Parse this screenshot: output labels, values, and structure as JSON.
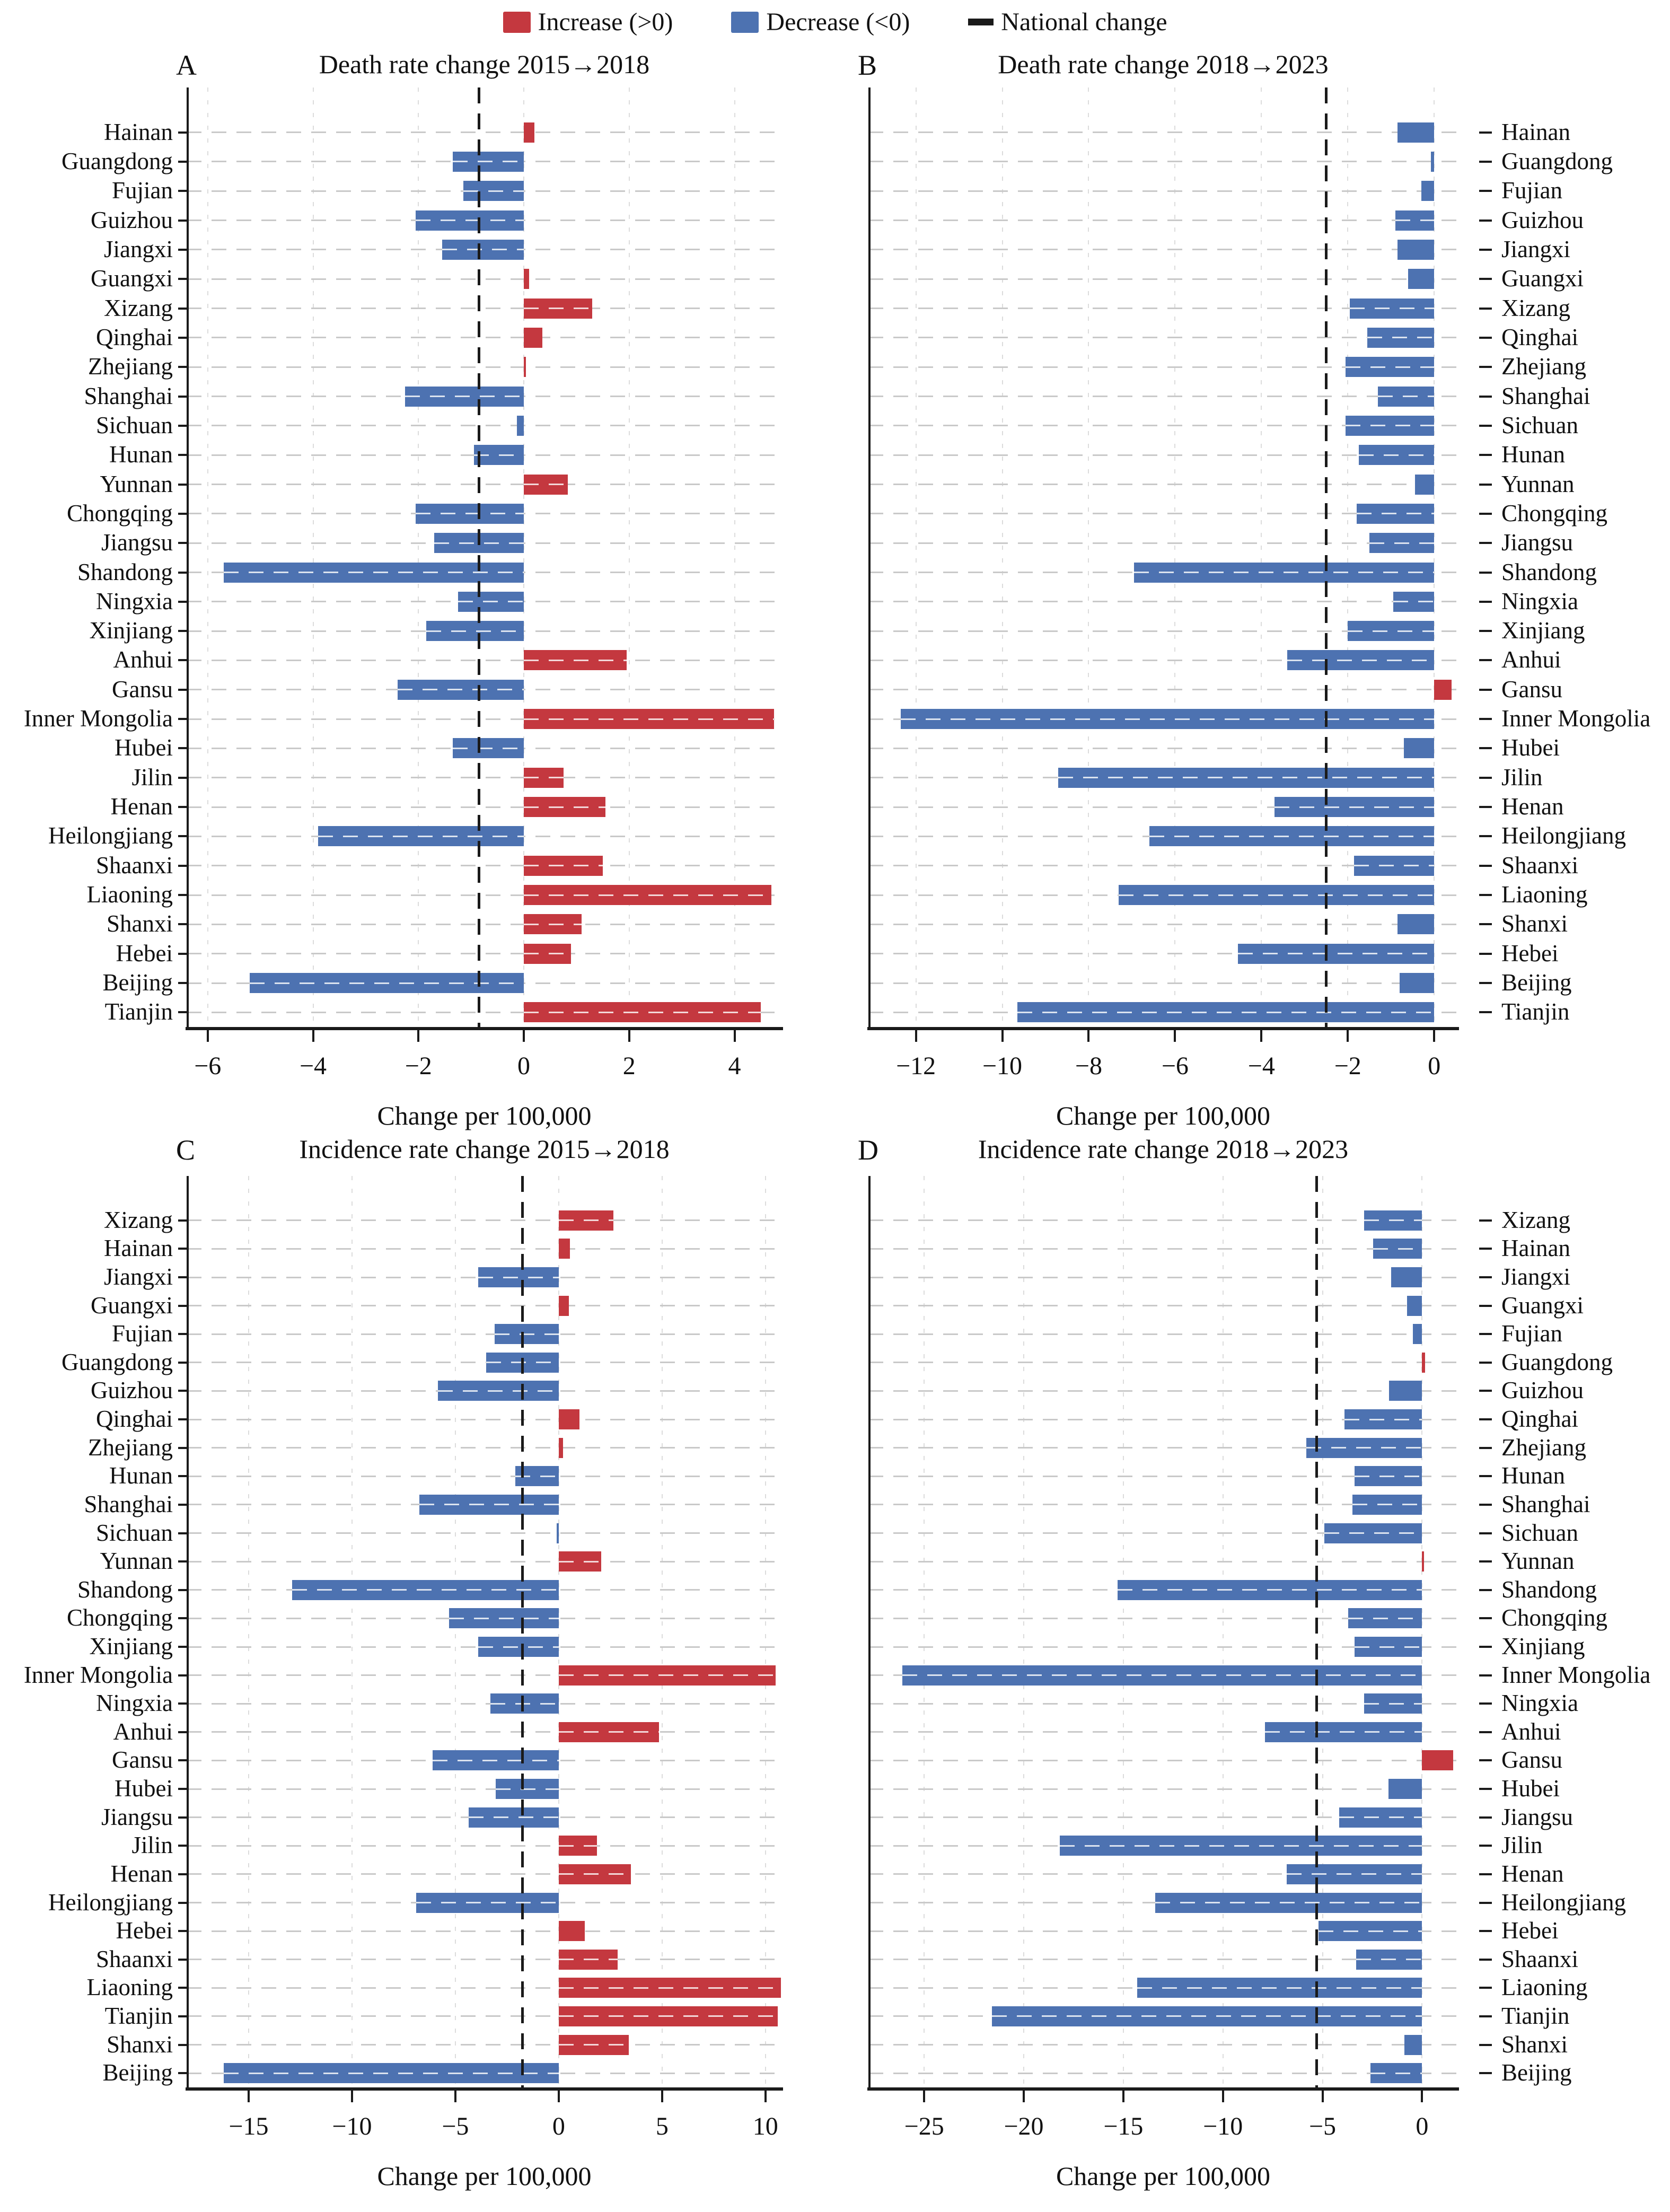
{
  "figure": {
    "legend": [
      {
        "label": "Increase (>0)",
        "swatch": "increase"
      },
      {
        "label": "Decrease (<0)",
        "swatch": "decrease"
      },
      {
        "label": "National change",
        "swatch": "national"
      }
    ],
    "colors": {
      "increase": "#c4383f",
      "decrease": "#4d72b1",
      "national": "#1a1a1a",
      "row_grid": "#c9c9c9",
      "tick_grid": "#dcdcdc",
      "axis": "#1a1a1a"
    }
  },
  "chart_data": [
    {
      "type": "bar",
      "letter": "A",
      "title": "Death rate change 2015→2018",
      "xlabel": "Change per 100,000",
      "orientation": "horizontal",
      "label_side": "left",
      "xlim": [
        -6.4,
        4.9
      ],
      "ticks": [
        -6,
        -4,
        -2,
        0,
        2,
        4
      ],
      "national_change": -0.85,
      "categories": [
        "Hainan",
        "Guangdong",
        "Fujian",
        "Guizhou",
        "Jiangxi",
        "Guangxi",
        "Xizang",
        "Qinghai",
        "Zhejiang",
        "Shanghai",
        "Sichuan",
        "Hunan",
        "Yunnan",
        "Chongqing",
        "Jiangsu",
        "Shandong",
        "Ningxia",
        "Xinjiang",
        "Anhui",
        "Gansu",
        "Inner Mongolia",
        "Hubei",
        "Jilin",
        "Henan",
        "Heilongjiang",
        "Shaanxi",
        "Liaoning",
        "Shanxi",
        "Hebei",
        "Beijing",
        "Tianjin"
      ],
      "values": [
        0.2,
        -1.35,
        -1.15,
        -2.05,
        -1.55,
        0.1,
        1.3,
        0.35,
        0.03,
        -2.25,
        -0.13,
        -0.95,
        0.83,
        -2.05,
        -1.7,
        -5.7,
        -1.25,
        -1.85,
        1.95,
        -2.4,
        4.75,
        -1.35,
        0.75,
        1.55,
        -3.9,
        1.5,
        4.7,
        1.1,
        0.9,
        -5.2,
        4.5
      ]
    },
    {
      "type": "bar",
      "letter": "B",
      "title": "Death rate change 2018→2023",
      "xlabel": "Change per 100,000",
      "orientation": "horizontal",
      "label_side": "right",
      "xlim": [
        -13.1,
        0.55
      ],
      "ticks": [
        -12,
        -10,
        -8,
        -6,
        -4,
        -2,
        0
      ],
      "national_change": -2.5,
      "categories": [
        "Hainan",
        "Guangdong",
        "Fujian",
        "Guizhou",
        "Jiangxi",
        "Guangxi",
        "Xizang",
        "Qinghai",
        "Zhejiang",
        "Shanghai",
        "Sichuan",
        "Hunan",
        "Yunnan",
        "Chongqing",
        "Jiangsu",
        "Shandong",
        "Ningxia",
        "Xinjiang",
        "Anhui",
        "Gansu",
        "Inner Mongolia",
        "Hubei",
        "Jilin",
        "Henan",
        "Heilongjiang",
        "Shaanxi",
        "Liaoning",
        "Shanxi",
        "Hebei",
        "Beijing",
        "Tianjin"
      ],
      "values": [
        -0.85,
        -0.08,
        -0.3,
        -0.9,
        -0.85,
        -0.6,
        -1.95,
        -1.55,
        -2.05,
        -1.3,
        -2.05,
        -1.75,
        -0.45,
        -1.8,
        -1.5,
        -6.95,
        -0.95,
        -2.0,
        -3.4,
        0.4,
        -12.35,
        -0.7,
        -8.7,
        -3.7,
        -6.6,
        -1.85,
        -7.3,
        -0.85,
        -4.55,
        -0.8,
        -9.65
      ]
    },
    {
      "type": "bar",
      "letter": "C",
      "title": "Incidence rate change 2015→2018",
      "xlabel": "Change per 100,000",
      "orientation": "horizontal",
      "label_side": "left",
      "xlim": [
        -18.0,
        10.8
      ],
      "ticks": [
        -15,
        -10,
        -5,
        0,
        5,
        10
      ],
      "national_change": -1.75,
      "categories": [
        "Xizang",
        "Hainan",
        "Jiangxi",
        "Guangxi",
        "Fujian",
        "Guangdong",
        "Guizhou",
        "Qinghai",
        "Zhejiang",
        "Hunan",
        "Shanghai",
        "Sichuan",
        "Yunnan",
        "Shandong",
        "Chongqing",
        "Xinjiang",
        "Inner Mongolia",
        "Ningxia",
        "Anhui",
        "Gansu",
        "Hubei",
        "Jiangsu",
        "Jilin",
        "Henan",
        "Heilongjiang",
        "Hebei",
        "Shaanxi",
        "Liaoning",
        "Tianjin",
        "Shanxi",
        "Beijing"
      ],
      "values": [
        2.65,
        0.55,
        -3.9,
        0.5,
        -3.1,
        -3.5,
        -5.85,
        1.0,
        0.2,
        -2.1,
        -6.75,
        -0.05,
        2.05,
        -12.9,
        -5.3,
        -3.9,
        10.5,
        -3.3,
        4.85,
        -6.1,
        -3.05,
        -4.35,
        1.85,
        3.5,
        -6.9,
        1.25,
        2.85,
        10.75,
        10.6,
        3.4,
        -16.2
      ]
    },
    {
      "type": "bar",
      "letter": "D",
      "title": "Incidence rate change 2018→2023",
      "xlabel": "Change per 100,000",
      "orientation": "horizontal",
      "label_side": "right",
      "xlim": [
        -27.8,
        1.8
      ],
      "ticks": [
        -25,
        -20,
        -15,
        -10,
        -5,
        0
      ],
      "national_change": -5.3,
      "categories": [
        "Xizang",
        "Hainan",
        "Jiangxi",
        "Guangxi",
        "Fujian",
        "Guangdong",
        "Guizhou",
        "Qinghai",
        "Zhejiang",
        "Hunan",
        "Shanghai",
        "Sichuan",
        "Yunnan",
        "Shandong",
        "Chongqing",
        "Xinjiang",
        "Inner Mongolia",
        "Ningxia",
        "Anhui",
        "Gansu",
        "Hubei",
        "Jiangsu",
        "Jilin",
        "Henan",
        "Heilongjiang",
        "Hebei",
        "Shaanxi",
        "Liaoning",
        "Tianjin",
        "Shanxi",
        "Beijing"
      ],
      "values": [
        -2.9,
        -2.45,
        -1.55,
        -0.75,
        -0.45,
        0.15,
        -1.65,
        -3.9,
        -5.8,
        -3.4,
        -3.5,
        -4.9,
        0.05,
        -15.3,
        -3.7,
        -3.4,
        -26.1,
        -2.9,
        -7.9,
        1.55,
        -1.7,
        -4.15,
        -18.2,
        -6.8,
        -13.4,
        -5.2,
        -3.3,
        -14.3,
        -21.6,
        -0.9,
        -2.6
      ]
    }
  ]
}
